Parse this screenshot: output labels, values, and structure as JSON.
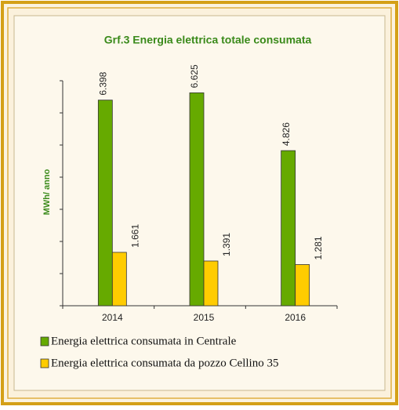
{
  "chart_data": {
    "type": "bar",
    "title": "Grf.3 Energia elettrica totale consumata",
    "ylabel": "MWh/ anno",
    "categories": [
      "2014",
      "2015",
      "2016"
    ],
    "series": [
      {
        "name": "Energia elettrica consumata in Centrale",
        "color": "#66aa00",
        "values": [
          6398,
          6625,
          4826
        ],
        "value_labels": [
          "6.398",
          "6.625",
          "4.826"
        ]
      },
      {
        "name": "Energia elettrica consumata da pozzo Cellino 35",
        "color": "#ffcc00",
        "values": [
          1661,
          1391,
          1281
        ],
        "value_labels": [
          "1.661",
          "1.391",
          "1.281"
        ]
      }
    ],
    "ylim": [
      0,
      7000
    ],
    "yticks": [
      0,
      1000,
      2000,
      3000,
      4000,
      5000,
      6000,
      7000
    ]
  }
}
